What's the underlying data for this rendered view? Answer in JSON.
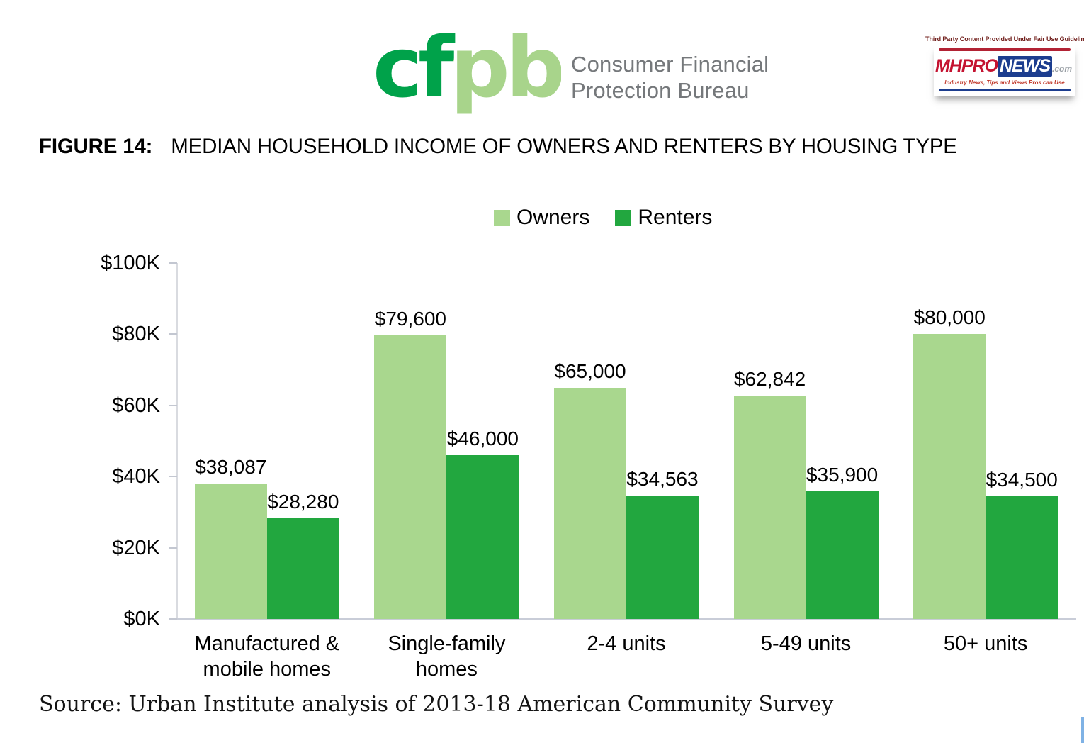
{
  "header": {
    "fair_use_notice": "Third Party Content Provided Under Fair Use Guidelines"
  },
  "cfpb": {
    "wordmark": "cfpb",
    "name_line1": "Consumer Financial",
    "name_line2": "Protection Bureau",
    "brand_green_dark": "#00a24a",
    "brand_green_light": "#a8d48b",
    "name_gray": "#75787b"
  },
  "mhpronews": {
    "mh": "MH",
    "pro": "PRO",
    "news": "NEWS",
    "dotcom": ".com",
    "tagline": "Industry News, Tips and Views Pros can Use",
    "red": "#c41230",
    "blue": "#1c3d8f"
  },
  "figure": {
    "label": "FIGURE 14:",
    "title": "MEDIAN HOUSEHOLD INCOME OF OWNERS AND RENTERS BY HOUSING TYPE"
  },
  "source_note": "Source: Urban Institute analysis of 2013-18 American Community Survey",
  "chart_data": {
    "type": "bar",
    "title": "Median household income of owners and renters by housing type",
    "categories": [
      "Manufactured &\nmobile homes",
      "Single-family\nhomes",
      "2-4 units",
      "5-49 units",
      "50+ units"
    ],
    "series": [
      {
        "name": "Owners",
        "color": "#a9d78e",
        "values": [
          38087,
          79600,
          65000,
          62842,
          80000
        ],
        "labels": [
          "$38,087",
          "$79,600",
          "$65,000",
          "$62,842",
          "$80,000"
        ]
      },
      {
        "name": "Renters",
        "color": "#22a73f",
        "values": [
          28280,
          46000,
          34563,
          35900,
          34500
        ],
        "labels": [
          "$28,280",
          "$46,000",
          "$34,563",
          "$35,900",
          "$34,500"
        ]
      }
    ],
    "y_axis": {
      "min": 0,
      "max": 100000,
      "ticks": [
        0,
        20000,
        40000,
        60000,
        80000,
        100000
      ],
      "tick_labels": [
        "$0K",
        "$20K",
        "$40K",
        "$60K",
        "$80K",
        "$100K"
      ]
    },
    "grid": false,
    "legend_position": "top-center"
  }
}
